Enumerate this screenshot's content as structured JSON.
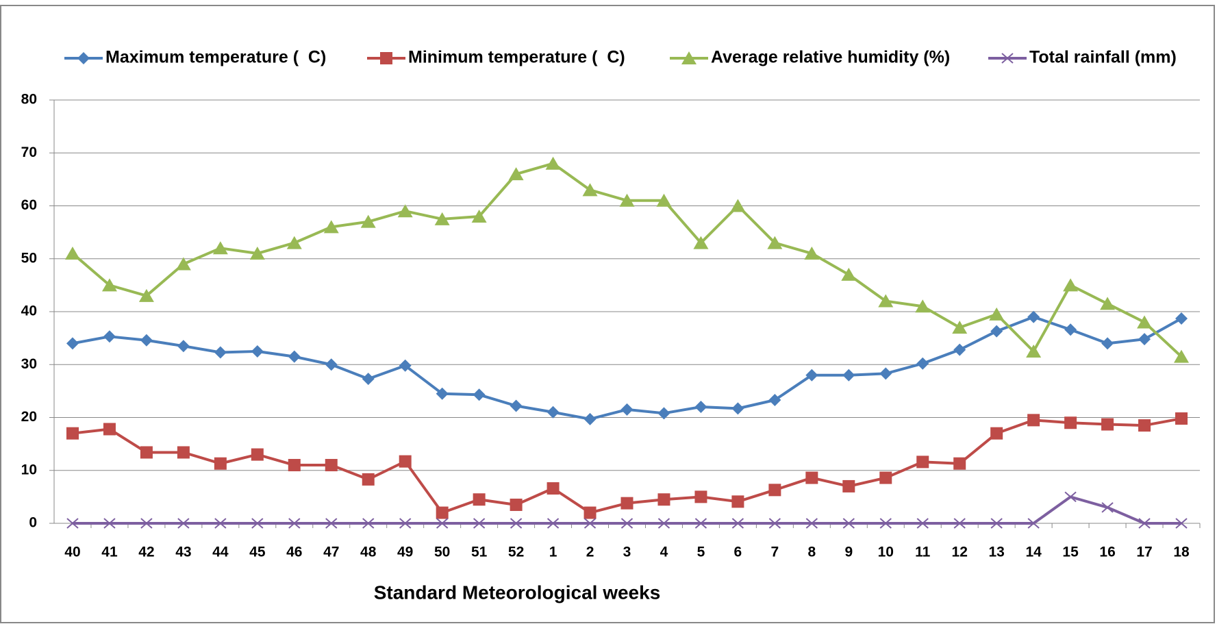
{
  "chart_data": {
    "type": "line",
    "x_label": "Standard Meteorological weeks",
    "categories": [
      "40",
      "41",
      "42",
      "43",
      "44",
      "45",
      "46",
      "47",
      "48",
      "49",
      "50",
      "51",
      "52",
      "1",
      "2",
      "3",
      "4",
      "5",
      "6",
      "7",
      "8",
      "9",
      "10",
      "11",
      "12",
      "13",
      "14",
      "15",
      "16",
      "17",
      "18"
    ],
    "ylim": [
      0,
      80
    ],
    "yticks": [
      0,
      10,
      20,
      30,
      40,
      50,
      60,
      70,
      80
    ],
    "grid": true,
    "legend": "top",
    "series": [
      {
        "name": "Maximum temperature (  C)",
        "color": "#4a7ebb",
        "marker": "diamond",
        "values": [
          34,
          35.3,
          34.6,
          33.5,
          32.3,
          32.5,
          31.5,
          30,
          27.3,
          29.8,
          24.5,
          24.3,
          22.2,
          21,
          19.7,
          21.5,
          20.8,
          22,
          21.7,
          23.3,
          28,
          28,
          28.3,
          30.2,
          32.8,
          36.3,
          39,
          36.6,
          34,
          34.8,
          38.7
        ]
      },
      {
        "name": "Minimum temperature (  C)",
        "color": "#be4b48",
        "marker": "square",
        "values": [
          17,
          17.8,
          13.4,
          13.4,
          11.3,
          13,
          11,
          11,
          8.3,
          11.7,
          2,
          4.5,
          3.5,
          6.6,
          2,
          3.8,
          4.5,
          5,
          4.1,
          6.3,
          8.6,
          7,
          8.6,
          11.6,
          11.3,
          17,
          19.5,
          19,
          18.7,
          18.5,
          19.8
        ]
      },
      {
        "name": "Average relative humidity (%)",
        "color": "#98b954",
        "marker": "triangle",
        "values": [
          51,
          45,
          43,
          49,
          52,
          51,
          53,
          56,
          57,
          59,
          57.5,
          58,
          66,
          68,
          63,
          61,
          61,
          53,
          60,
          53,
          51,
          47,
          42,
          41,
          37,
          39.5,
          32.5,
          45,
          41.5,
          38,
          31.5
        ]
      },
      {
        "name": "Total rainfall (mm)",
        "color": "#7d5fa0",
        "marker": "x",
        "values": [
          0,
          0,
          0,
          0,
          0,
          0,
          0,
          0,
          0,
          0,
          0,
          0,
          0,
          0,
          0,
          0,
          0,
          0,
          0,
          0,
          0,
          0,
          0,
          0,
          0,
          0,
          0,
          5,
          3,
          0,
          0
        ]
      }
    ]
  }
}
